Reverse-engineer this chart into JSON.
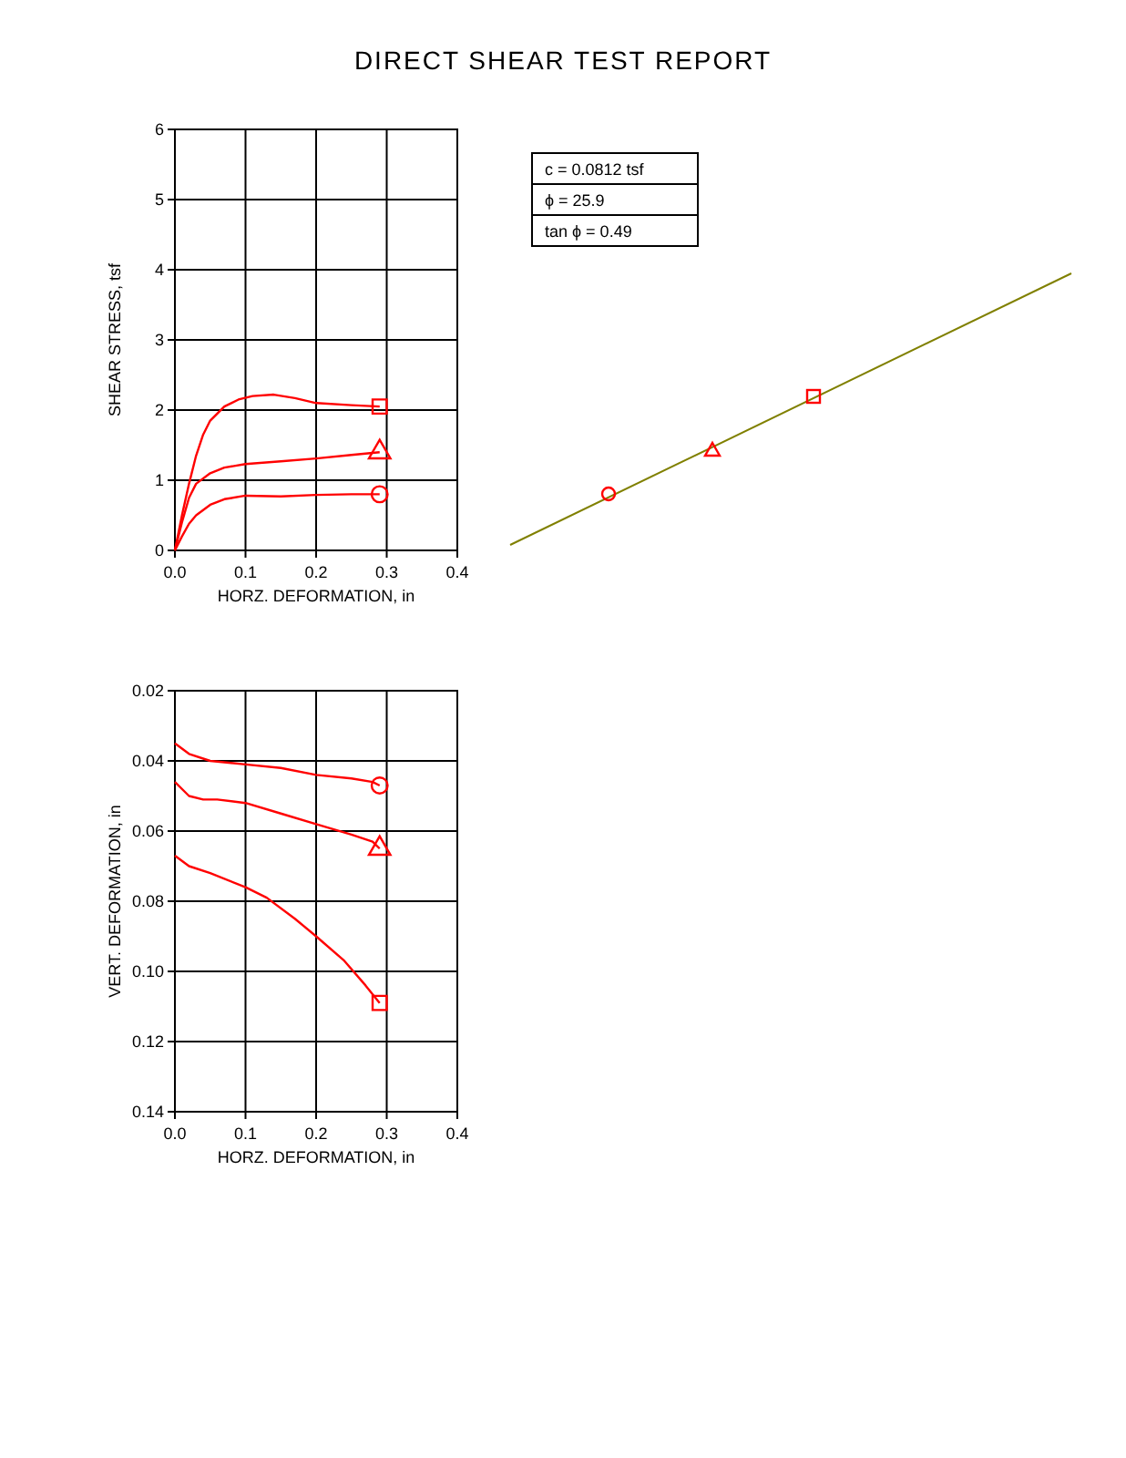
{
  "chart_data": [
    {
      "type": "line",
      "title": "DIRECT SHEAR TEST REPORT",
      "xlabel": "HORZ. DEFORMATION, in",
      "ylabel": "SHEAR STRESS, tsf",
      "xlim": [
        0,
        0.4
      ],
      "ylim": [
        0,
        6
      ],
      "xticks": [
        {
          "value": 0,
          "label": "0.0"
        },
        0.1,
        0.2,
        0.3,
        0.4
      ],
      "yticks": [
        0,
        1,
        2,
        3,
        4,
        5,
        6
      ],
      "grid": true,
      "line_style": "solid",
      "series": [
        {
          "color": "#ff0000",
          "x": [
            0,
            0.01,
            0.02,
            0.03,
            0.04,
            0.05,
            0.07,
            0.09,
            0.11,
            0.14,
            0.17,
            0.2,
            0.25,
            0.29
          ],
          "values": [
            0,
            0.5,
            0.95,
            1.35,
            1.65,
            1.85,
            2.05,
            2.15,
            2.2,
            2.22,
            2.17,
            2.1,
            2.07,
            2.05
          ]
        },
        {
          "color": "#ff0000",
          "x": [
            0,
            0.01,
            0.02,
            0.03,
            0.05,
            0.07,
            0.1,
            0.15,
            0.2,
            0.25,
            0.29
          ],
          "values": [
            0,
            0.4,
            0.75,
            0.95,
            1.1,
            1.18,
            1.23,
            1.27,
            1.31,
            1.36,
            1.4
          ]
        },
        {
          "color": "#ff0000",
          "x": [
            0,
            0.01,
            0.02,
            0.03,
            0.05,
            0.07,
            0.1,
            0.15,
            0.2,
            0.25,
            0.29
          ],
          "values": [
            0,
            0.2,
            0.38,
            0.5,
            0.65,
            0.73,
            0.78,
            0.77,
            0.79,
            0.8,
            0.8
          ]
        },
        {
          "type": "scatter",
          "color": "#ff0000",
          "marker": "square",
          "x": [
            0.29
          ],
          "values": [
            2.05
          ]
        },
        {
          "type": "scatter",
          "color": "#ff0000",
          "marker": "triangle",
          "x": [
            0.29
          ],
          "values": [
            1.4
          ]
        },
        {
          "type": "scatter",
          "color": "#ff0000",
          "marker": "circle",
          "x": [
            0.29
          ],
          "values": [
            0.8
          ]
        }
      ]
    },
    {
      "type": "other",
      "annotations": [
        "c = 0.0812 tsf",
        "ϕ = 25.9",
        "tan ϕ = 0.49"
      ]
    },
    {
      "type": "line",
      "xlabel": "HORZ. DEFORMATION, in",
      "ylabel": "VERT. DEFORMATION, in",
      "xlim": [
        0,
        0.4
      ],
      "ylim": [
        0.14,
        0.02
      ],
      "xticks": [
        {
          "value": 0,
          "label": "0.0"
        },
        0.1,
        0.2,
        0.3,
        0.4
      ],
      "yticks": [
        0.02,
        0.04,
        0.06,
        0.08,
        {
          "value": 0.1,
          "label": "0.10"
        },
        0.12,
        0.14
      ],
      "grid": true,
      "line_style": "solid",
      "series": [
        {
          "color": "#ff0000",
          "x": [
            0,
            0.02,
            0.05,
            0.1,
            0.15,
            0.2,
            0.25,
            0.28,
            0.29
          ],
          "values": [
            0.035,
            0.038,
            0.04,
            0.041,
            0.042,
            0.044,
            0.045,
            0.046,
            0.047
          ]
        },
        {
          "color": "#ff0000",
          "x": [
            0,
            0.02,
            0.04,
            0.06,
            0.1,
            0.15,
            0.2,
            0.25,
            0.28,
            0.29
          ],
          "values": [
            0.046,
            0.05,
            0.051,
            0.051,
            0.052,
            0.055,
            0.058,
            0.061,
            0.063,
            0.065
          ]
        },
        {
          "color": "#ff0000",
          "x": [
            0,
            0.02,
            0.05,
            0.1,
            0.13,
            0.17,
            0.2,
            0.24,
            0.27,
            0.29
          ],
          "values": [
            0.067,
            0.07,
            0.072,
            0.076,
            0.079,
            0.085,
            0.09,
            0.097,
            0.104,
            0.109
          ]
        },
        {
          "type": "scatter",
          "color": "#ff0000",
          "marker": "circle",
          "x": [
            0.29
          ],
          "values": [
            0.047
          ]
        },
        {
          "type": "scatter",
          "color": "#ff0000",
          "marker": "triangle",
          "x": [
            0.29
          ],
          "values": [
            0.065
          ]
        },
        {
          "type": "scatter",
          "color": "#ff0000",
          "marker": "square",
          "x": [
            0.29
          ],
          "values": [
            0.109
          ]
        }
      ]
    }
  ]
}
